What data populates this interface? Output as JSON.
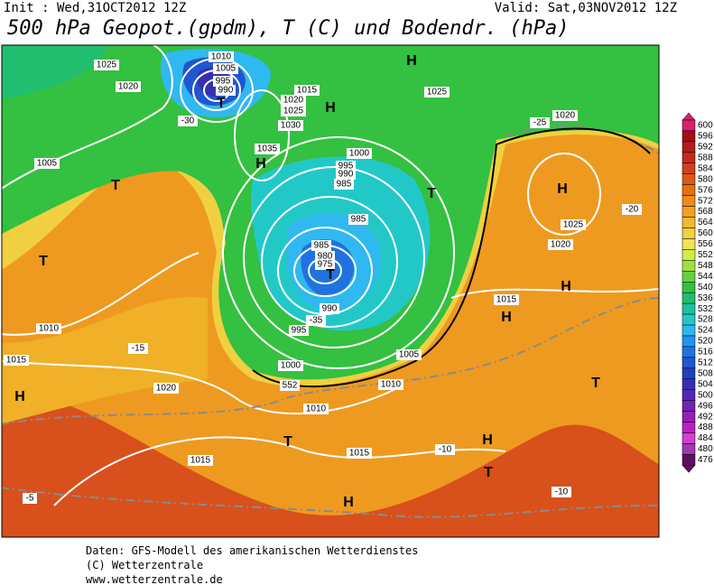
{
  "header": {
    "init": "Init : Wed,31OCT2012 12Z",
    "valid": "Valid: Sat,03NOV2012 12Z",
    "title": "500 hPa Geopot.(gpdm), T (C) und Bodendr. (hPa)"
  },
  "colorbar": {
    "values": [
      600,
      596,
      592,
      588,
      584,
      580,
      576,
      572,
      568,
      564,
      560,
      556,
      552,
      548,
      544,
      540,
      536,
      532,
      528,
      524,
      520,
      516,
      512,
      508,
      504,
      500,
      496,
      492,
      488,
      484,
      480,
      476
    ],
    "colors": [
      "#d8206e",
      "#a01018",
      "#b41c1c",
      "#c42a1c",
      "#d0401c",
      "#dc5814",
      "#e67010",
      "#ee8a18",
      "#f2a222",
      "#f2ba30",
      "#f2d040",
      "#f0e258",
      "#d2ee44",
      "#a2e040",
      "#68d040",
      "#34c040",
      "#22be70",
      "#20c0a0",
      "#22c8c8",
      "#30b8f0",
      "#2096f0",
      "#2072e0",
      "#2056d0",
      "#2040c0",
      "#3430b0",
      "#5228b0",
      "#7222b2",
      "#9420b4",
      "#bc20c0",
      "#d040d0",
      "#a038b0",
      "#601060"
    ]
  },
  "map": {
    "labels": [
      "1025",
      "1020",
      "1010",
      "1005",
      "995",
      "990",
      "T",
      "H",
      "H",
      "1015",
      "1020",
      "1025",
      "1030",
      "1035",
      "H",
      "1000",
      "995",
      "990",
      "985",
      "985",
      "T",
      "985",
      "980",
      "975",
      "T",
      "990",
      "995",
      "1000",
      "1005",
      "1010",
      "H",
      "1025",
      "1020",
      "H",
      "H",
      "T",
      "H",
      "T",
      "T",
      "1005",
      "1010",
      "1015",
      "1020",
      "1010",
      "T",
      "1015",
      "1015",
      "H",
      "T",
      "H",
      "552",
      "1015",
      "-30",
      "-35",
      "-25",
      "-20",
      "-15",
      "-10",
      "-5",
      "-10",
      "1020",
      "1025"
    ]
  },
  "footer": {
    "lines": [
      "Daten: GFS-Modell des amerikanischen Wetterdienstes",
      "(C) Wetterzentrale",
      "www.wetterzentrale.de"
    ]
  }
}
